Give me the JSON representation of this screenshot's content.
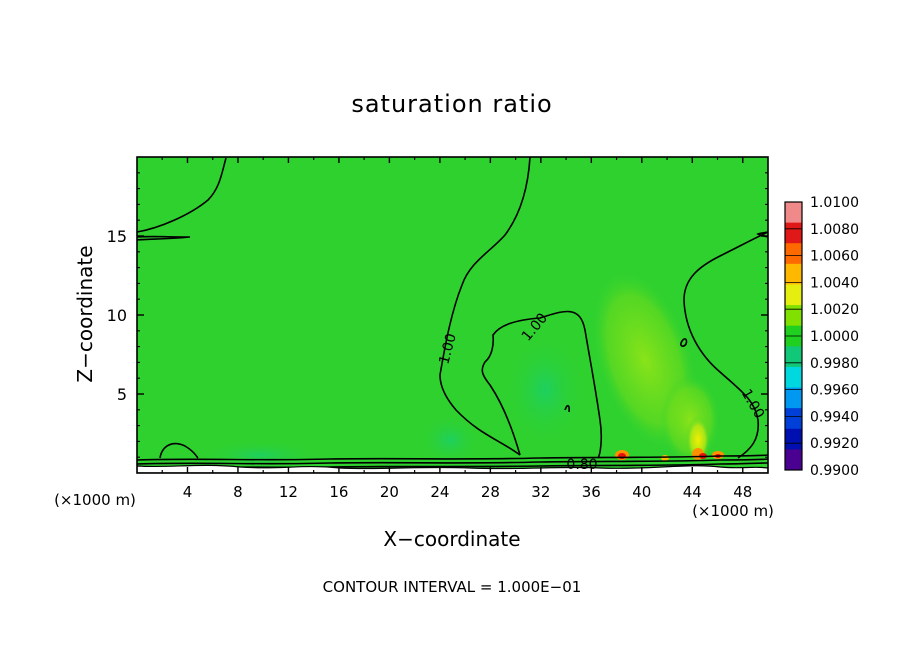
{
  "chart_data": {
    "type": "heatmap",
    "title": "saturation ratio",
    "xlabel": "X−coordinate",
    "ylabel": "Z−coordinate",
    "x_unit_left": "(×1000 m)",
    "x_unit_right": "(×1000 m)",
    "xlim": [
      0,
      50
    ],
    "ylim": [
      0,
      20
    ],
    "x_ticks": [
      4,
      8,
      12,
      16,
      20,
      24,
      28,
      32,
      36,
      40,
      44,
      48
    ],
    "y_ticks": [
      5,
      10,
      15
    ],
    "contour_interval_text": "CONTOUR INTERVAL = 1.000E−01",
    "contour_labels": [
      {
        "text": "1.00",
        "x": 25.0,
        "y": 8.0,
        "angle": -75
      },
      {
        "text": "1.00",
        "x": 32.0,
        "y": 9.0,
        "angle": -50
      },
      {
        "text": "1.00",
        "x": 48.0,
        "y": 4.5,
        "angle": 60
      },
      {
        "text": "0.80",
        "x": 35.0,
        "y": 0.7,
        "angle": 0
      }
    ],
    "colorbar": {
      "labels": [
        "1.0100",
        "1.0080",
        "1.0060",
        "1.0040",
        "1.0020",
        "1.0000",
        "0.9980",
        "0.9960",
        "0.9940",
        "0.9920",
        "0.9900"
      ],
      "colors": [
        "#f08a8a",
        "#e01818",
        "#ff6a00",
        "#ffb800",
        "#e6ee10",
        "#80e000",
        "#1fd020",
        "#10c878",
        "#00d8e0",
        "#0098f0",
        "#0040d8",
        "#0010b0",
        "#4a0090"
      ]
    },
    "background_color": "#2fd12f",
    "colors": {
      "lighter_plume": "#7ee21a",
      "yellow_plume": "#e2f000",
      "teal_patch": "#22d468",
      "red_spot": "#e81010",
      "orange_spot": "#ff9000",
      "contour": "#000000",
      "terrain": "#ffffff"
    }
  }
}
